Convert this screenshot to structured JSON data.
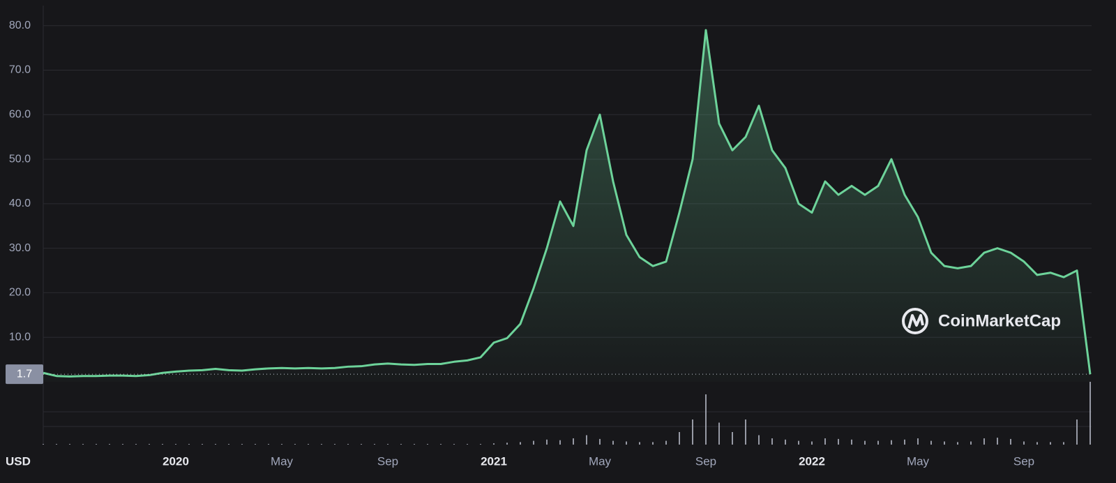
{
  "chart_data": {
    "type": "area",
    "color": "#6dd39a",
    "volume_color": "#b8bcc8",
    "grid": true,
    "axis_unit": "USD",
    "watermark": "CoinMarketCap",
    "current_price": 1.7,
    "ylim": [
      0,
      84.5
    ],
    "yticks": [
      {
        "value": 10,
        "label": "10.0"
      },
      {
        "value": 20,
        "label": "20.0"
      },
      {
        "value": 30,
        "label": "30.0"
      },
      {
        "value": 40,
        "label": "40.0"
      },
      {
        "value": 50,
        "label": "50.0"
      },
      {
        "value": 60,
        "label": "60.0"
      },
      {
        "value": 70,
        "label": "70.0"
      },
      {
        "value": 80,
        "label": "80.0"
      }
    ],
    "categories": [
      null,
      null,
      null,
      null,
      null,
      null,
      null,
      null,
      null,
      null,
      "2020",
      null,
      null,
      null,
      null,
      null,
      null,
      null,
      "May",
      null,
      null,
      null,
      null,
      null,
      null,
      null,
      "Sep",
      null,
      null,
      null,
      null,
      null,
      null,
      null,
      "2021",
      null,
      null,
      null,
      null,
      null,
      null,
      null,
      "May",
      null,
      null,
      null,
      null,
      null,
      null,
      null,
      "Sep",
      null,
      null,
      null,
      null,
      null,
      null,
      null,
      "2022",
      null,
      null,
      null,
      null,
      null,
      null,
      null,
      "May",
      null,
      null,
      null,
      null,
      null,
      null,
      null,
      "Sep",
      null,
      null,
      null,
      null,
      null
    ],
    "values": [
      2.0,
      1.3,
      1.2,
      1.3,
      1.3,
      1.4,
      1.4,
      1.3,
      1.5,
      2.0,
      2.3,
      2.5,
      2.6,
      2.9,
      2.6,
      2.5,
      2.8,
      3.0,
      3.1,
      3.0,
      3.1,
      3.0,
      3.1,
      3.4,
      3.5,
      3.9,
      4.1,
      3.9,
      3.8,
      4.0,
      4.0,
      4.5,
      4.8,
      5.5,
      8.8,
      9.8,
      13.0,
      21.0,
      30.0,
      40.5,
      35.0,
      52.0,
      60.0,
      45.0,
      33.0,
      28.0,
      26.0,
      27.0,
      38.0,
      50.0,
      79.0,
      58.0,
      52.0,
      55.0,
      62.0,
      52.0,
      48.0,
      40.0,
      38.0,
      45.0,
      42.0,
      44.0,
      42.0,
      44.0,
      50.0,
      42.0,
      37.0,
      29.0,
      26.0,
      25.5,
      26.0,
      29.0,
      30.0,
      29.0,
      27.0,
      24.0,
      24.5,
      23.5,
      25.0,
      1.7
    ],
    "volume_lim": [
      0,
      100
    ],
    "volume": [
      1,
      1,
      1,
      1,
      1,
      1,
      1,
      1,
      1,
      1,
      1,
      1,
      1,
      1,
      1,
      1,
      1,
      1,
      1,
      1,
      1,
      1,
      1,
      1,
      1,
      1,
      1,
      1,
      1,
      1,
      1,
      1,
      1,
      1,
      2,
      3,
      4,
      6,
      8,
      7,
      10,
      15,
      9,
      6,
      5,
      4,
      4,
      6,
      20,
      40,
      80,
      35,
      20,
      40,
      15,
      10,
      8,
      6,
      5,
      10,
      9,
      8,
      6,
      6,
      7,
      8,
      10,
      6,
      5,
      4,
      5,
      10,
      11,
      9,
      5,
      4,
      4,
      4,
      40,
      100
    ]
  }
}
